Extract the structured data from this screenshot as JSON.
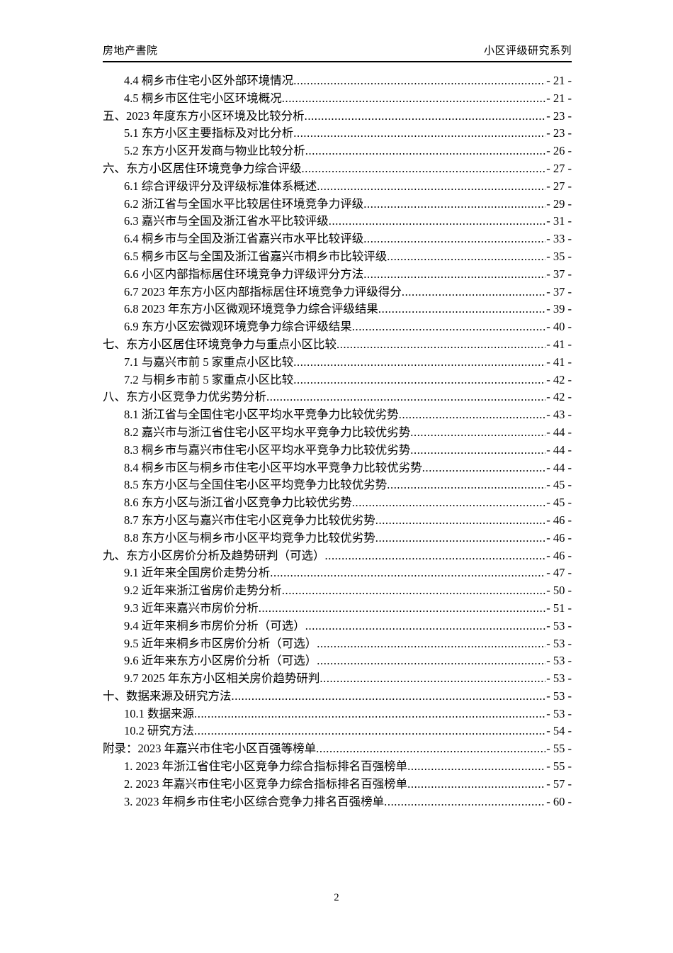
{
  "header": {
    "left": "房地产書院",
    "right": "小区评级研究系列"
  },
  "footer": {
    "page_number": "2"
  },
  "toc": {
    "entries": [
      {
        "level": 2,
        "label": "4.4 桐乡市住宅小区外部环境情况",
        "page": "- 21 -"
      },
      {
        "level": 2,
        "label": "4.5 桐乡市区住宅小区环境概况",
        "page": "- 21 -"
      },
      {
        "level": 1,
        "label": "五、2023 年度东方小区环境及比较分析",
        "page": "- 23 -"
      },
      {
        "level": 2,
        "label": "5.1 东方小区主要指标及对比分析",
        "page": "- 23 -"
      },
      {
        "level": 2,
        "label": "5.2 东方小区开发商与物业比较分析",
        "page": "- 26 -"
      },
      {
        "level": 1,
        "label": "六、东方小区居住环境竞争力综合评级",
        "page": "- 27 -"
      },
      {
        "level": 2,
        "label": "6.1 综合评级评分及评级标准体系概述",
        "page": "- 27 -"
      },
      {
        "level": 2,
        "label": "6.2 浙江省与全国水平比较居住环境竞争力评级",
        "page": "- 29 -"
      },
      {
        "level": 2,
        "label": "6.3 嘉兴市与全国及浙江省水平比较评级",
        "page": "- 31 -"
      },
      {
        "level": 2,
        "label": "6.4 桐乡市与全国及浙江省嘉兴市水平比较评级",
        "page": "- 33 -"
      },
      {
        "level": 2,
        "label": "6.5 桐乡市区与全国及浙江省嘉兴市桐乡市比较评级",
        "page": "- 35 -"
      },
      {
        "level": 2,
        "label": "6.6 小区内部指标居住环境竞争力评级评分方法",
        "page": "- 37 -"
      },
      {
        "level": 2,
        "label": "6.7 2023 年东方小区内部指标居住环境竞争力评级得分",
        "page": "- 37 -"
      },
      {
        "level": 2,
        "label": "6.8 2023 年东方小区微观环境竞争力综合评级结果",
        "page": "- 39 -"
      },
      {
        "level": 2,
        "label": "6.9 东方小区宏微观环境竞争力综合评级结果",
        "page": "- 40 -"
      },
      {
        "level": 1,
        "label": "七、东方小区居住环境竞争力与重点小区比较",
        "page": "- 41 -"
      },
      {
        "level": 2,
        "label": "7.1 与嘉兴市前 5 家重点小区比较",
        "page": "- 41 -"
      },
      {
        "level": 2,
        "label": "7.2 与桐乡市前 5 家重点小区比较",
        "page": "- 42 -"
      },
      {
        "level": 1,
        "label": "八、东方小区竞争力优劣势分析",
        "page": "- 42 -"
      },
      {
        "level": 2,
        "label": "8.1 浙江省与全国住宅小区平均水平竞争力比较优劣势",
        "page": "- 43 -"
      },
      {
        "level": 2,
        "label": "8.2 嘉兴市与浙江省住宅小区平均水平竞争力比较优劣势",
        "page": "- 44 -"
      },
      {
        "level": 2,
        "label": "8.3 桐乡市与嘉兴市住宅小区平均水平竞争力比较优劣势",
        "page": "- 44 -"
      },
      {
        "level": 2,
        "label": "8.4 桐乡市区与桐乡市住宅小区平均水平竞争力比较优劣势",
        "page": "- 44 -"
      },
      {
        "level": 2,
        "label": "8.5 东方小区与全国住宅小区平均竞争力比较优劣势",
        "page": "- 45 -"
      },
      {
        "level": 2,
        "label": "8.6 东方小区与浙江省小区竞争力比较优劣势",
        "page": "- 45 -"
      },
      {
        "level": 2,
        "label": "8.7 东方小区与嘉兴市住宅小区竞争力比较优劣势",
        "page": "- 46 -"
      },
      {
        "level": 2,
        "label": "8.8 东方小区与桐乡市小区平均竞争力比较优劣势",
        "page": "- 46 -"
      },
      {
        "level": 1,
        "label": "九、东方小区房价分析及趋势研判（可选）",
        "page": "- 46 -"
      },
      {
        "level": 2,
        "label": "9.1 近年来全国房价走势分析",
        "page": "- 47 -"
      },
      {
        "level": 2,
        "label": "9.2 近年来浙江省房价走势分析",
        "page": "- 50 -"
      },
      {
        "level": 2,
        "label": "9.3 近年来嘉兴市房价分析",
        "page": "- 51 -"
      },
      {
        "level": 2,
        "label": "9.4 近年来桐乡市房价分析（可选）",
        "page": "- 53 -"
      },
      {
        "level": 2,
        "label": "9.5 近年来桐乡市区房价分析（可选）",
        "page": "- 53 -"
      },
      {
        "level": 2,
        "label": "9.6 近年来东方小区房价分析（可选）",
        "page": "- 53 -"
      },
      {
        "level": 2,
        "label": "9.7 2025 年东方小区相关房价趋势研判",
        "page": "- 53 -"
      },
      {
        "level": 1,
        "label": "十、数据来源及研究方法",
        "page": "- 53 -"
      },
      {
        "level": 2,
        "label": "10.1 数据来源",
        "page": "- 53 -"
      },
      {
        "level": 2,
        "label": "10.2 研究方法",
        "page": "- 54 -"
      },
      {
        "level": 1,
        "label": "附录：2023 年嘉兴市住宅小区百强等榜单",
        "page": "- 55 -"
      },
      {
        "level": 2,
        "label": "1. 2023 年浙江省住宅小区竞争力综合指标排名百强榜单",
        "page": "- 55 -"
      },
      {
        "level": 2,
        "label": "2. 2023 年嘉兴市住宅小区竞争力综合指标排名百强榜单",
        "page": "- 57 -"
      },
      {
        "level": 2,
        "label": "3. 2023 年桐乡市住宅小区综合竞争力排名百强榜单",
        "page": "- 60 -"
      }
    ]
  }
}
